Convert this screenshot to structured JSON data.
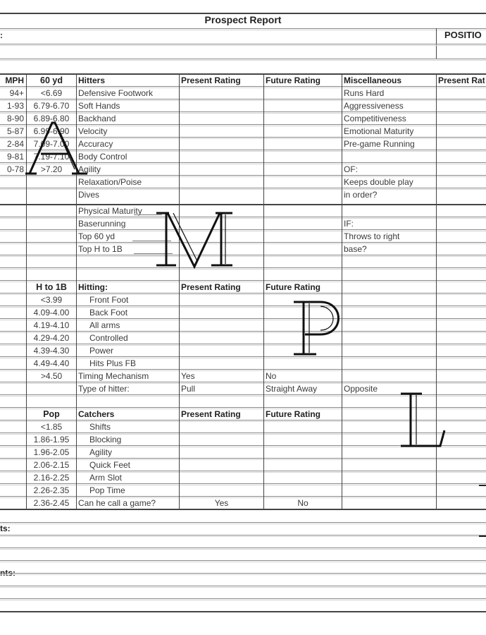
{
  "header": {
    "title": "Prospect Report",
    "name_label": ":",
    "position_label": "POSITIO"
  },
  "table": {
    "rows": [
      {
        "kind": "header",
        "cells": [
          "MPH",
          "60 yd",
          "Hitters",
          "Present Rating",
          "Future Rating",
          "Miscellaneous",
          "Present Rating"
        ]
      },
      {
        "cells": [
          "94+",
          "<6.69",
          "Defensive Footwork",
          "",
          "",
          "Runs Hard",
          ""
        ]
      },
      {
        "cells": [
          "1-93",
          "6.79-6.70",
          "Soft Hands",
          "",
          "",
          "Aggressiveness",
          ""
        ]
      },
      {
        "cells": [
          "8-90",
          "6.89-6.80",
          "Backhand",
          "",
          "",
          "Competitiveness",
          ""
        ]
      },
      {
        "cells": [
          "5-87",
          "6.99-6.90",
          "Velocity",
          "",
          "",
          "Emotional Maturity",
          ""
        ]
      },
      {
        "cells": [
          "2-84",
          "7.09-7.00",
          "Accuracy",
          "",
          "",
          "Pre-game Running",
          ""
        ]
      },
      {
        "cells": [
          "9-81",
          "7.19-7.10",
          "Body Control",
          "",
          "",
          "",
          ""
        ]
      },
      {
        "cells": [
          "0-78",
          ">7.20",
          "Agility",
          "",
          "",
          "OF:",
          ""
        ]
      },
      {
        "cells": [
          "",
          "",
          "Relaxation/Poise",
          "",
          "",
          "Keeps double play",
          ""
        ]
      },
      {
        "cells": [
          "",
          "",
          "Dives",
          "",
          "",
          "in order?",
          ""
        ]
      },
      {
        "cells": [
          "",
          "",
          "Physical Maturity",
          "",
          "",
          "",
          ""
        ]
      },
      {
        "cells": [
          "",
          "",
          "Baserunning",
          "",
          "",
          "IF:",
          ""
        ]
      },
      {
        "cells": [
          "",
          "",
          "Top 60 yd",
          "",
          "",
          "Throws to right",
          ""
        ]
      },
      {
        "cells": [
          "",
          "",
          "Top H to 1B",
          "",
          "",
          "base?",
          ""
        ]
      },
      {
        "cells": [
          "",
          "",
          "",
          "",
          "",
          "",
          ""
        ]
      },
      {
        "cells": [
          "",
          "",
          "",
          "",
          "",
          "",
          ""
        ]
      },
      {
        "kind": "header",
        "cells": [
          "",
          "H to 1B",
          "Hitting:",
          "Present Rating",
          "Future Rating",
          "",
          ""
        ]
      },
      {
        "sub": true,
        "cells": [
          "",
          "<3.99",
          "Front Foot",
          "",
          "",
          "",
          ""
        ]
      },
      {
        "sub": true,
        "cells": [
          "",
          "4.09-4.00",
          "Back Foot",
          "",
          "",
          "",
          ""
        ]
      },
      {
        "sub": true,
        "cells": [
          "",
          "4.19-4.10",
          "All arms",
          "",
          "",
          "",
          ""
        ]
      },
      {
        "sub": true,
        "cells": [
          "",
          "4.29-4.20",
          "Controlled",
          "",
          "",
          "",
          ""
        ]
      },
      {
        "sub": true,
        "cells": [
          "",
          "4.39-4.30",
          "Power",
          "",
          "",
          "",
          ""
        ]
      },
      {
        "sub": true,
        "cells": [
          "",
          "4.49-4.40",
          "Hits Plus FB",
          "",
          "",
          "",
          ""
        ]
      },
      {
        "cells": [
          "",
          ">4.50",
          "Timing Mechanism",
          "Yes",
          "No",
          "",
          ""
        ]
      },
      {
        "cells": [
          "",
          "",
          "Type of hitter:",
          "Pull",
          "Straight Away",
          "Opposite",
          ""
        ]
      },
      {
        "cells": [
          "",
          "",
          "",
          "",
          "",
          "",
          ""
        ]
      },
      {
        "kind": "header",
        "cells": [
          "",
          "Pop",
          "Catchers",
          "Present Rating",
          "Future Rating",
          "",
          ""
        ]
      },
      {
        "sub": true,
        "cells": [
          "",
          "<1.85",
          "Shifts",
          "",
          "",
          "",
          ""
        ]
      },
      {
        "sub": true,
        "cells": [
          "",
          "1.86-1.95",
          "Blocking",
          "",
          "",
          "",
          ""
        ]
      },
      {
        "sub": true,
        "cells": [
          "",
          "1.96-2.05",
          "Agility",
          "",
          "",
          "",
          ""
        ]
      },
      {
        "sub": true,
        "cells": [
          "",
          "2.06-2.15",
          "Quick Feet",
          "",
          "",
          "",
          ""
        ]
      },
      {
        "sub": true,
        "cells": [
          "",
          "2.16-2.25",
          "Arm Slot",
          "",
          "",
          "",
          ""
        ]
      },
      {
        "sub": true,
        "cells": [
          "",
          "2.26-2.35",
          "Pop Time",
          "",
          "",
          "",
          ""
        ]
      },
      {
        "center": true,
        "cells": [
          "",
          "2.36-2.45",
          "Can he call a game?",
          "Yes",
          "No",
          "",
          ""
        ]
      }
    ]
  },
  "footer": {
    "comments_label_1": "ts:",
    "comments_label_2": "nts:"
  },
  "watermark": {
    "letters": [
      "A",
      "M",
      "P",
      "L"
    ]
  }
}
